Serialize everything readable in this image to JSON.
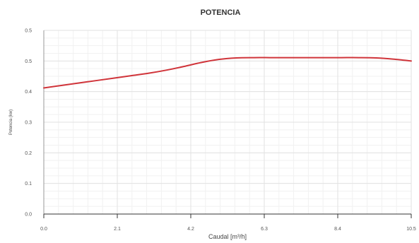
{
  "chart_data": {
    "type": "line",
    "title": "POTENCIA",
    "xlabel": "Caudal [m³/h]",
    "ylabel": "Potencia (kw)",
    "xlim": [
      0,
      10.5
    ],
    "ylim": [
      0,
      0.6
    ],
    "x_ticks": [
      "0.0",
      "2.1",
      "4.2",
      "6.3",
      "8.4",
      "10.5"
    ],
    "y_ticks": [
      "0.0",
      "0.1",
      "0.2",
      "0.3",
      "0.4",
      "0.5",
      "0.5"
    ],
    "grid": true,
    "legend": "none",
    "series": [
      {
        "color": "#d0343a",
        "x": [
          0,
          0.5,
          1.0,
          1.5,
          2.0,
          2.5,
          3.0,
          3.5,
          4.0,
          4.5,
          5.0,
          5.5,
          6.0,
          6.5,
          7.0,
          7.5,
          8.0,
          8.5,
          9.0,
          9.5,
          10.0,
          10.5
        ],
        "y": [
          0.412,
          0.42,
          0.428,
          0.436,
          0.444,
          0.452,
          0.46,
          0.47,
          0.482,
          0.495,
          0.505,
          0.51,
          0.511,
          0.511,
          0.511,
          0.511,
          0.511,
          0.511,
          0.511,
          0.51,
          0.506,
          0.5
        ]
      }
    ]
  }
}
